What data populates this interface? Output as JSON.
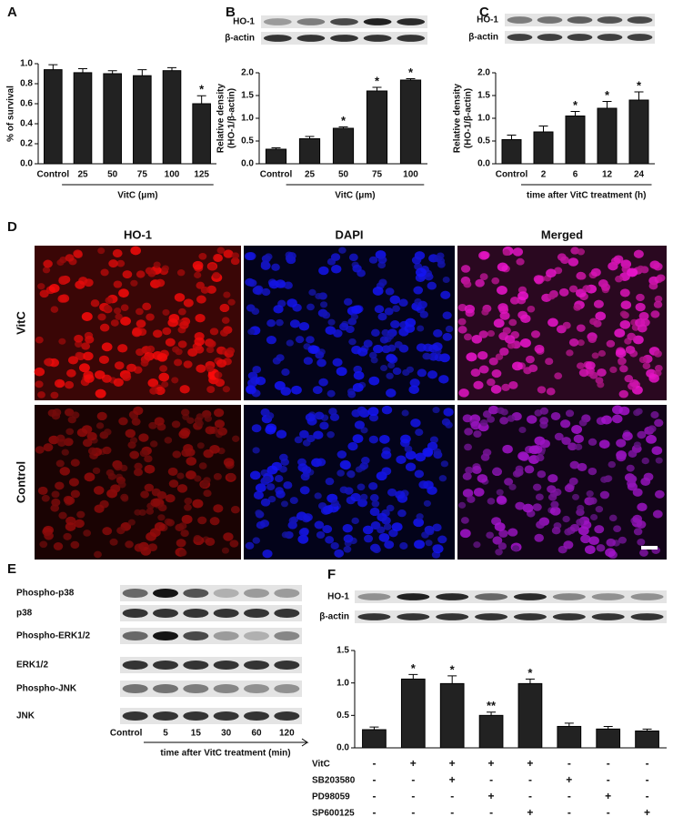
{
  "figure": {
    "panel_labels": [
      "A",
      "B",
      "C",
      "D",
      "E",
      "F"
    ]
  },
  "chart_data": [
    {
      "type": "bar",
      "categories": [
        "Control",
        "25",
        "50",
        "75",
        "100",
        "125"
      ],
      "values": [
        0.94,
        0.91,
        0.9,
        0.88,
        0.93,
        0.6
      ],
      "errors": [
        0.05,
        0.04,
        0.03,
        0.06,
        0.03,
        0.08
      ],
      "stars": [
        null,
        null,
        null,
        null,
        null,
        "*"
      ],
      "color": "#222222",
      "ylim": [
        0,
        1
      ],
      "yticks": [
        {
          "value": 0,
          "label": "0.0"
        },
        0.2,
        0.4,
        0.6,
        0.8,
        {
          "value": 1,
          "label": "1.0"
        }
      ],
      "ylabel": [
        "% of survival"
      ],
      "xlabel": "VitC (μm)"
    },
    {
      "type": "bar",
      "categories": [
        "Control",
        "25",
        "50",
        "75",
        "100"
      ],
      "values": [
        0.32,
        0.55,
        0.78,
        1.6,
        1.84
      ],
      "errors": [
        0.03,
        0.05,
        0.03,
        0.08,
        0.03
      ],
      "stars": [
        null,
        null,
        "*",
        "*",
        "*"
      ],
      "color": "#222222",
      "ylim": [
        0,
        2
      ],
      "yticks": [
        {
          "value": 0,
          "label": "0.0"
        },
        0.5,
        {
          "value": 1,
          "label": "1.0"
        },
        1.5,
        {
          "value": 2,
          "label": "2.0"
        }
      ],
      "ylabel": [
        "Relative density",
        "(HO-1/β-actin)"
      ],
      "xlabel": "VitC (μm)"
    },
    {
      "type": "bar",
      "categories": [
        "Control",
        "2",
        "6",
        "12",
        "24"
      ],
      "values": [
        0.53,
        0.7,
        1.05,
        1.22,
        1.4
      ],
      "errors": [
        0.1,
        0.13,
        0.1,
        0.15,
        0.18
      ],
      "stars": [
        null,
        null,
        "*",
        "*",
        "*"
      ],
      "color": "#222222",
      "ylim": [
        0,
        2
      ],
      "yticks": [
        {
          "value": 0,
          "label": "0.0"
        },
        0.5,
        {
          "value": 1,
          "label": "1.0"
        },
        1.5,
        {
          "value": 2,
          "label": "2.0"
        }
      ],
      "ylabel": [
        "Relative density",
        "(HO-1/β-actin)"
      ],
      "xlabel": "time after VitC treatment (h)"
    },
    {
      "type": "bar",
      "categories": [
        null,
        null,
        null,
        null,
        null,
        null,
        null,
        null
      ],
      "values": [
        0.28,
        1.06,
        0.99,
        0.5,
        0.99,
        0.33,
        0.29,
        0.26
      ],
      "errors": [
        0.04,
        0.07,
        0.12,
        0.05,
        0.07,
        0.05,
        0.04,
        0.03
      ],
      "stars": [
        null,
        "*",
        "*",
        "**",
        "*",
        null,
        null,
        null
      ],
      "color": "#222222",
      "ylim": [
        0,
        1.5
      ],
      "yticks": [
        {
          "value": 0,
          "label": "0.0"
        },
        0.5,
        {
          "value": 1,
          "label": "1.0"
        },
        1.5
      ],
      "treatments": [
        {
          "name": "VitC",
          "marks": [
            "-",
            "+",
            "+",
            "+",
            "+",
            "-",
            "-",
            "-"
          ]
        },
        {
          "name": "SB203580",
          "marks": [
            "-",
            "-",
            "+",
            "-",
            "-",
            "+",
            "-",
            "-"
          ]
        },
        {
          "name": "PD98059",
          "marks": [
            "-",
            "-",
            "-",
            "+",
            "-",
            "-",
            "+",
            "-"
          ]
        },
        {
          "name": "SP600125",
          "marks": [
            "-",
            "-",
            "-",
            "-",
            "+",
            "-",
            "-",
            "+"
          ]
        }
      ]
    }
  ],
  "blots": {
    "b": [
      "HO-1",
      "β-actin"
    ],
    "c": [
      "HO-1",
      "β-actin"
    ],
    "f": [
      "HO-1",
      "β-actin"
    ]
  },
  "panel_d": {
    "columns": [
      "HO-1",
      "DAPI",
      "Merged"
    ],
    "rows": [
      "VitC",
      "Control"
    ]
  },
  "panel_e": {
    "rows": [
      "Phospho-p38",
      "p38",
      "Phospho-ERK1/2",
      "ERK1/2",
      "Phospho-JNK",
      "JNK"
    ],
    "lanes": [
      "Control",
      "5",
      "15",
      "30",
      "60",
      "120"
    ],
    "xlabel": "time after VitC treatment (min)"
  }
}
